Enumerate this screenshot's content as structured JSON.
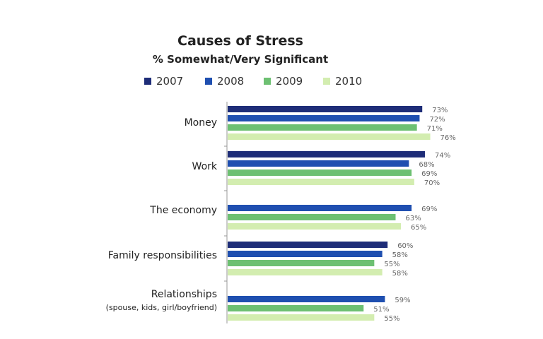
{
  "chart_data": {
    "type": "bar",
    "orientation": "horizontal",
    "title": "Causes of Stress",
    "subtitle": "% Somewhat/Very Significant",
    "legend_position": "top",
    "grid": false,
    "xlim": [
      0,
      100
    ],
    "value_suffix": "%",
    "categories": [
      {
        "label": "Money",
        "sublabel": ""
      },
      {
        "label": "Work",
        "sublabel": ""
      },
      {
        "label": "The economy",
        "sublabel": ""
      },
      {
        "label": "Family responsibilities",
        "sublabel": ""
      },
      {
        "label": "Relationships",
        "sublabel": "(spouse, kids, girl/boyfriend)"
      }
    ],
    "series": [
      {
        "name": "2007",
        "color": "#1e2d78",
        "values": [
          73,
          74,
          null,
          60,
          null
        ]
      },
      {
        "name": "2008",
        "color": "#1f4fb0",
        "values": [
          72,
          68,
          69,
          58,
          59
        ]
      },
      {
        "name": "2009",
        "color": "#6dc072",
        "values": [
          71,
          69,
          63,
          55,
          51
        ]
      },
      {
        "name": "2010",
        "color": "#d3edb0",
        "values": [
          76,
          70,
          65,
          58,
          55
        ]
      }
    ]
  }
}
